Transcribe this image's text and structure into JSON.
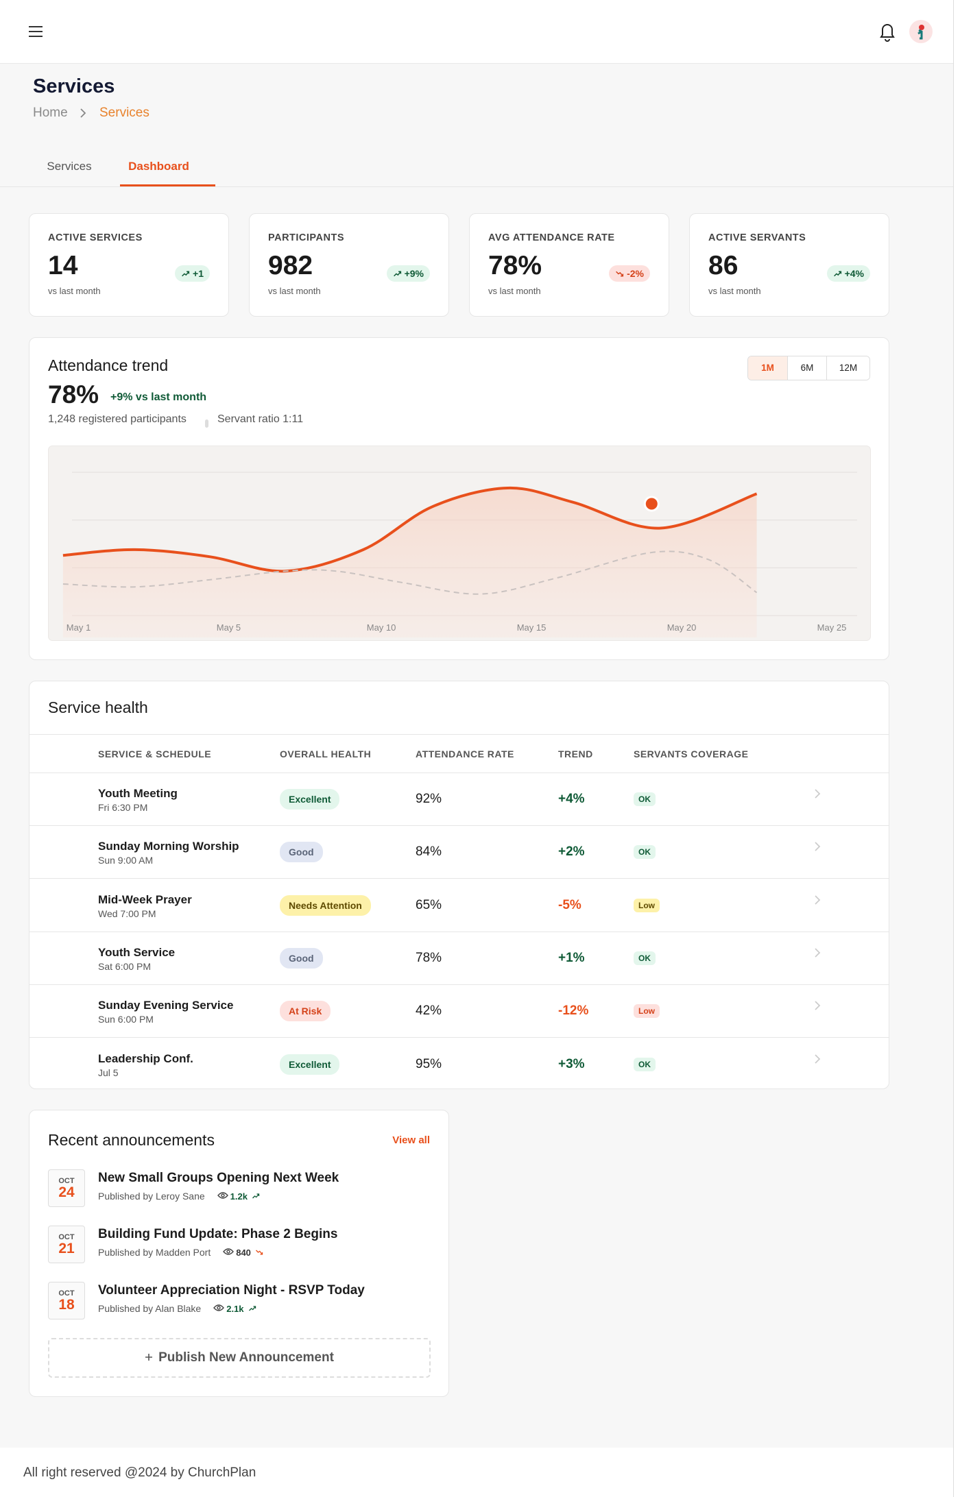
{
  "page": {
    "title": "Services",
    "breadcrumb": [
      "Home",
      "Services"
    ],
    "tabs": [
      "Services",
      "Dashboard"
    ],
    "active_tab": 1
  },
  "stats": [
    {
      "label": "ACTIVE SERVICES",
      "value": "14",
      "delta": "+1",
      "direction": "up",
      "note": "vs last month"
    },
    {
      "label": "PARTICIPANTS",
      "value": "982",
      "delta": "+9%",
      "direction": "up",
      "note": "vs last month"
    },
    {
      "label": "AVG ATTENDANCE RATE",
      "value": "78%",
      "delta": "-2%",
      "direction": "down",
      "note": "vs last month"
    },
    {
      "label": "ACTIVE SERVANTS",
      "value": "86",
      "delta": "+4%",
      "direction": "up",
      "note": "vs last month"
    }
  ],
  "trend": {
    "title": "Attendance trend",
    "value": "78%",
    "change": "+9% vs last month",
    "participants": "1,248 registered participants",
    "ratio": "Servant ratio 1:11",
    "ranges": [
      "1M",
      "6M",
      "12M"
    ],
    "active_range": 0,
    "chart_data": {
      "type": "line",
      "xlim": [
        0,
        27.4
      ],
      "ylim": [
        0,
        100
      ],
      "xticks": [
        {
          "value": 1,
          "label": "May 1"
        },
        {
          "value": 6,
          "label": "May 5"
        },
        {
          "value": 11,
          "label": "May 10"
        },
        {
          "value": 16,
          "label": "May 15"
        },
        {
          "value": 21,
          "label": "May 20"
        },
        {
          "value": 26,
          "label": "May 25"
        }
      ],
      "series": [
        {
          "color": "#e8501c",
          "area": true,
          "x": [
            0.5,
            2.9,
            5.4,
            7.9,
            10.5,
            12.8,
            15.3,
            17.5,
            20.4,
            23.6
          ],
          "values": [
            42,
            46,
            41,
            31,
            46,
            76,
            89,
            79,
            61,
            85
          ]
        },
        {
          "color": "#c9c2c0",
          "dashed": true,
          "x": [
            0.5,
            2.9,
            5.4,
            7.9,
            9.6,
            11.8,
            14.4,
            16.9,
            20.1,
            22.0,
            23.6
          ],
          "values": [
            22,
            20,
            25,
            31,
            31,
            23,
            15,
            26,
            44,
            39,
            16
          ]
        }
      ],
      "highlight": {
        "x": 20.1,
        "value": 78,
        "color": "#e8501c"
      }
    }
  },
  "health": {
    "title": "Service health",
    "columns": [
      "SERVICE & SCHEDULE",
      "OVERALL HEALTH",
      "ATTENDANCE RATE",
      "TREND",
      "SERVANTS COVERAGE"
    ],
    "rows": [
      {
        "name": "Youth Meeting",
        "schedule": "Fri 6:30 PM",
        "health": "Excellent",
        "health_tone": "green",
        "attendance": "92%",
        "trend": "+4%",
        "trend_tone": "up",
        "coverage": "OK",
        "coverage_tone": "green"
      },
      {
        "name": "Sunday Morning Worship",
        "schedule": "Sun 9:00 AM",
        "health": "Good",
        "health_tone": "blue",
        "attendance": "84%",
        "trend": "+2%",
        "trend_tone": "up",
        "coverage": "OK",
        "coverage_tone": "green"
      },
      {
        "name": "Mid-Week Prayer",
        "schedule": "Wed 7:00 PM",
        "health": "Needs Attention",
        "health_tone": "yellow",
        "attendance": "65%",
        "trend": "-5%",
        "trend_tone": "down",
        "coverage": "Low",
        "coverage_tone": "yellow"
      },
      {
        "name": "Youth Service",
        "schedule": "Sat 6:00 PM",
        "health": "Good",
        "health_tone": "blue",
        "attendance": "78%",
        "trend": "+1%",
        "trend_tone": "up",
        "coverage": "OK",
        "coverage_tone": "green"
      },
      {
        "name": "Sunday Evening Service",
        "schedule": "Sun 6:00 PM",
        "health": "At Risk",
        "health_tone": "red",
        "attendance": "42%",
        "trend": "-12%",
        "trend_tone": "down",
        "coverage": "Low",
        "coverage_tone": "red"
      },
      {
        "name": "Leadership Conf.",
        "schedule": "Jul 5",
        "health": "Excellent",
        "health_tone": "green",
        "attendance": "95%",
        "trend": "+3%",
        "trend_tone": "up",
        "coverage": "OK",
        "coverage_tone": "green"
      }
    ]
  },
  "announcements": {
    "title": "Recent announcements",
    "view_all": "View all",
    "button": "Publish New Announcement",
    "items": [
      {
        "month": "OCT",
        "day": "24",
        "title": "New Small Groups Opening Next Week",
        "author": "Published by Leroy Sane",
        "views": "1.2k",
        "direction": "up"
      },
      {
        "month": "OCT",
        "day": "21",
        "title": "Building Fund Update: Phase 2 Begins",
        "author": "Published by Madden Port",
        "views": "840",
        "direction": "down"
      },
      {
        "month": "OCT",
        "day": "18",
        "title": "Volunteer Appreciation Night - RSVP Today",
        "author": "Published by Alan Blake",
        "views": "2.1k",
        "direction": "up"
      }
    ]
  },
  "footer": "All right reserved @2024 by ChurchPlan"
}
